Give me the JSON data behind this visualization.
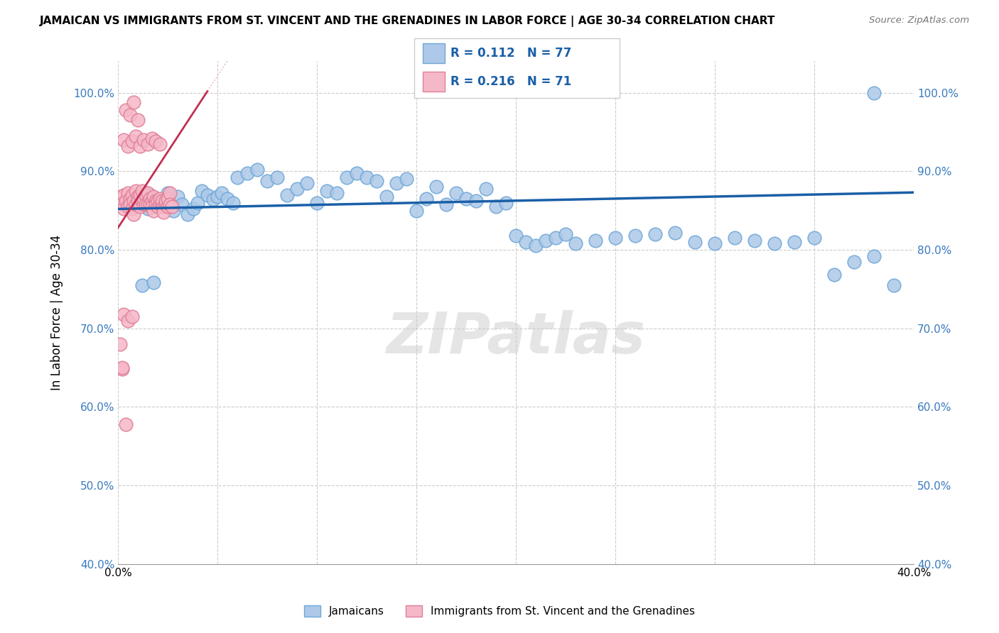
{
  "title": "JAMAICAN VS IMMIGRANTS FROM ST. VINCENT AND THE GRENADINES IN LABOR FORCE | AGE 30-34 CORRELATION CHART",
  "source": "Source: ZipAtlas.com",
  "ylabel": "In Labor Force | Age 30-34",
  "xlim": [
    0.0,
    0.4
  ],
  "ylim": [
    0.4,
    1.04
  ],
  "xticks": [
    0.0,
    0.05,
    0.1,
    0.15,
    0.2,
    0.25,
    0.3,
    0.35,
    0.4
  ],
  "yticks": [
    0.4,
    0.5,
    0.6,
    0.7,
    0.8,
    0.9,
    1.0
  ],
  "ytick_labels": [
    "40.0%",
    "50.0%",
    "60.0%",
    "70.0%",
    "80.0%",
    "90.0%",
    "100.0%"
  ],
  "xtick_labels": [
    "0.0%",
    "",
    "",
    "",
    "",
    "",
    "",
    "",
    "40.0%"
  ],
  "blue_R": 0.112,
  "blue_N": 77,
  "pink_R": 0.216,
  "pink_N": 71,
  "blue_color": "#adc8e8",
  "blue_edge": "#6fa8d8",
  "pink_color": "#f5b8c8",
  "pink_edge": "#e08098",
  "blue_line_color": "#1a5fa8",
  "pink_line_color": "#c03050",
  "pink_dash_color": "#e090a0",
  "legend_label_blue": "Jamaicans",
  "legend_label_pink": "Immigrants from St. Vincent and the Grenadines",
  "watermark": "ZIPatlas",
  "blue_scatter_x": [
    0.005,
    0.008,
    0.01,
    0.012,
    0.015,
    0.016,
    0.018,
    0.02,
    0.022,
    0.025,
    0.028,
    0.03,
    0.032,
    0.035,
    0.038,
    0.04,
    0.042,
    0.045,
    0.048,
    0.05,
    0.052,
    0.055,
    0.058,
    0.06,
    0.065,
    0.07,
    0.075,
    0.08,
    0.085,
    0.09,
    0.095,
    0.1,
    0.105,
    0.11,
    0.115,
    0.12,
    0.125,
    0.13,
    0.135,
    0.14,
    0.145,
    0.15,
    0.155,
    0.16,
    0.165,
    0.17,
    0.175,
    0.18,
    0.185,
    0.19,
    0.195,
    0.2,
    0.205,
    0.21,
    0.215,
    0.22,
    0.225,
    0.23,
    0.24,
    0.25,
    0.26,
    0.27,
    0.28,
    0.29,
    0.3,
    0.31,
    0.32,
    0.33,
    0.34,
    0.35,
    0.36,
    0.37,
    0.38,
    0.39,
    0.012,
    0.018,
    0.38
  ],
  "blue_scatter_y": [
    0.862,
    0.868,
    0.858,
    0.862,
    0.852,
    0.87,
    0.862,
    0.858,
    0.855,
    0.872,
    0.85,
    0.868,
    0.858,
    0.845,
    0.852,
    0.86,
    0.875,
    0.87,
    0.864,
    0.868,
    0.872,
    0.865,
    0.86,
    0.892,
    0.898,
    0.902,
    0.888,
    0.892,
    0.87,
    0.878,
    0.885,
    0.86,
    0.875,
    0.872,
    0.892,
    0.898,
    0.892,
    0.888,
    0.868,
    0.885,
    0.89,
    0.85,
    0.865,
    0.88,
    0.858,
    0.872,
    0.865,
    0.862,
    0.878,
    0.855,
    0.86,
    0.818,
    0.81,
    0.805,
    0.812,
    0.815,
    0.82,
    0.808,
    0.812,
    0.815,
    0.818,
    0.82,
    0.822,
    0.81,
    0.808,
    0.815,
    0.812,
    0.808,
    0.81,
    0.815,
    0.768,
    0.785,
    0.792,
    0.755,
    0.755,
    0.758,
    1.0
  ],
  "pink_scatter_x": [
    0.001,
    0.002,
    0.003,
    0.003,
    0.004,
    0.005,
    0.005,
    0.006,
    0.006,
    0.007,
    0.007,
    0.008,
    0.008,
    0.009,
    0.009,
    0.01,
    0.01,
    0.011,
    0.011,
    0.012,
    0.012,
    0.013,
    0.013,
    0.014,
    0.014,
    0.015,
    0.015,
    0.016,
    0.016,
    0.017,
    0.017,
    0.018,
    0.018,
    0.019,
    0.019,
    0.02,
    0.02,
    0.021,
    0.021,
    0.022,
    0.022,
    0.023,
    0.023,
    0.024,
    0.024,
    0.025,
    0.025,
    0.026,
    0.026,
    0.027,
    0.003,
    0.005,
    0.007,
    0.009,
    0.011,
    0.013,
    0.015,
    0.017,
    0.019,
    0.021,
    0.004,
    0.006,
    0.008,
    0.01,
    0.003,
    0.005,
    0.007,
    0.002,
    0.004,
    0.001,
    0.002
  ],
  "pink_scatter_y": [
    0.868,
    0.86,
    0.852,
    0.87,
    0.862,
    0.855,
    0.872,
    0.865,
    0.858,
    0.852,
    0.87,
    0.845,
    0.862,
    0.858,
    0.875,
    0.868,
    0.862,
    0.87,
    0.855,
    0.875,
    0.862,
    0.858,
    0.865,
    0.87,
    0.858,
    0.872,
    0.858,
    0.865,
    0.858,
    0.862,
    0.855,
    0.868,
    0.85,
    0.862,
    0.858,
    0.855,
    0.862,
    0.858,
    0.865,
    0.858,
    0.862,
    0.855,
    0.848,
    0.858,
    0.862,
    0.855,
    0.865,
    0.872,
    0.858,
    0.855,
    0.94,
    0.932,
    0.938,
    0.945,
    0.932,
    0.94,
    0.935,
    0.942,
    0.938,
    0.935,
    0.978,
    0.972,
    0.988,
    0.965,
    0.718,
    0.71,
    0.715,
    0.648,
    0.578,
    0.68,
    0.65
  ]
}
